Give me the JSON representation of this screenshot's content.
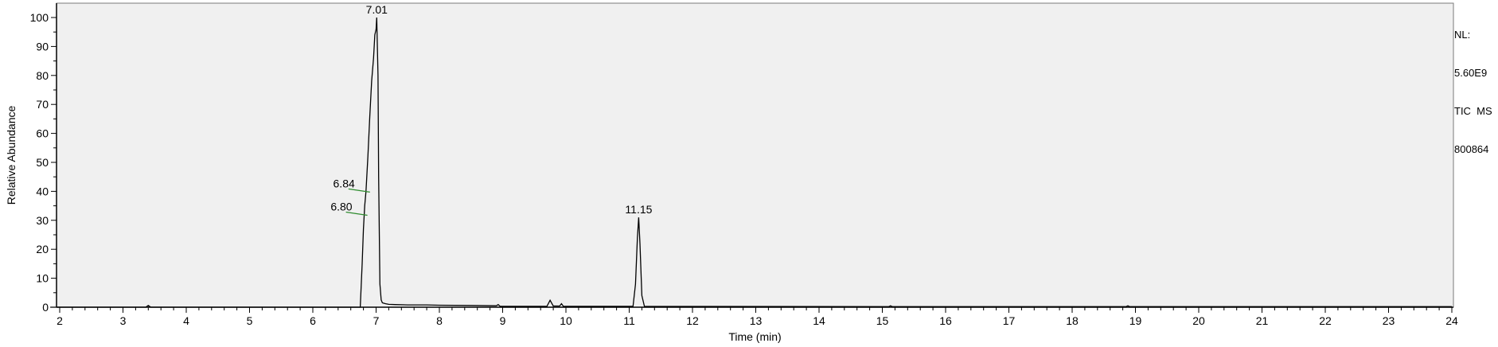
{
  "info": {
    "nl_label": "NL:",
    "nl_value": "5.60E9",
    "trace": "TIC  MS",
    "sample": "800864"
  },
  "chart_data": {
    "type": "line",
    "xlabel": "Time (min)",
    "ylabel": "Relative Abundance",
    "xlim": [
      1.85,
      24
    ],
    "ylim": [
      0,
      100
    ],
    "xticks": [
      2,
      3,
      4,
      5,
      6,
      7,
      8,
      9,
      10,
      11,
      12,
      13,
      14,
      15,
      16,
      17,
      18,
      19,
      20,
      21,
      22,
      23,
      24
    ],
    "yticks": [
      0,
      10,
      20,
      30,
      40,
      50,
      60,
      70,
      80,
      90,
      100
    ],
    "grid": false,
    "colors": {
      "trace": "#000000",
      "plot_bg": "#f0f0f0",
      "peak_marker": "#2e8b2e"
    },
    "series": [
      {
        "x": [
          1.85,
          3.36,
          3.4,
          3.44,
          6.75,
          6.78,
          6.8,
          6.82,
          6.84,
          6.87,
          6.9,
          6.93,
          6.96,
          6.98,
          7.0,
          7.01,
          7.03,
          7.04,
          7.06,
          7.08,
          7.1,
          7.15,
          7.2,
          7.3,
          7.5,
          7.8,
          8.0,
          8.5,
          8.9,
          8.93,
          8.96,
          9.7,
          9.75,
          9.8,
          9.9,
          9.93,
          9.96,
          11.06,
          11.1,
          11.13,
          11.15,
          11.17,
          11.2,
          11.24,
          15.1,
          15.13,
          15.16,
          18.85,
          18.88,
          18.91,
          24.0
        ],
        "y": [
          0,
          0,
          0.6,
          0,
          0,
          15,
          27,
          35,
          40,
          52,
          66,
          78,
          86,
          94,
          96,
          100,
          80,
          45,
          8,
          2.5,
          1.5,
          1.2,
          1.0,
          0.9,
          0.8,
          0.8,
          0.7,
          0.6,
          0.5,
          0.9,
          0.3,
          0.3,
          2.4,
          0.4,
          0.4,
          1.2,
          0.3,
          0.3,
          8,
          24,
          31,
          22,
          4,
          0.3,
          0.2,
          0.5,
          0.2,
          0.2,
          0.5,
          0.2,
          0.2
        ]
      }
    ],
    "peak_labels": [
      {
        "x": 7.01,
        "y": 100,
        "text": "7.01"
      },
      {
        "x": 11.15,
        "y": 31,
        "text": "11.15"
      },
      {
        "x": 6.84,
        "y": 40,
        "text": "6.84"
      },
      {
        "x": 6.8,
        "y": 32,
        "text": "6.80"
      }
    ]
  }
}
